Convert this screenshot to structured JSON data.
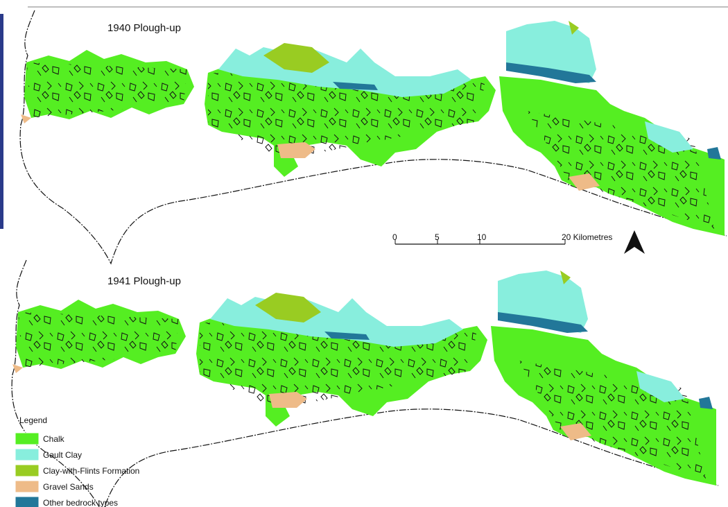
{
  "maps": [
    {
      "title": "1940 Plough-up"
    },
    {
      "title": "1941 Plough-up"
    }
  ],
  "scale_bar": {
    "labels": [
      "0",
      "5",
      "10",
      "20 Kilometres"
    ]
  },
  "legend": {
    "title": "Legend",
    "items": [
      {
        "label": "Chalk",
        "color": "#55ee22"
      },
      {
        "label": "Gault Clay",
        "color": "#88eedd"
      },
      {
        "label": "Clay-with-Flints Formation",
        "color": "#99cc22"
      },
      {
        "label": "Gravel Sands",
        "color": "#eebb88"
      },
      {
        "label": "Other bedrock types",
        "color": "#227799"
      }
    ]
  }
}
